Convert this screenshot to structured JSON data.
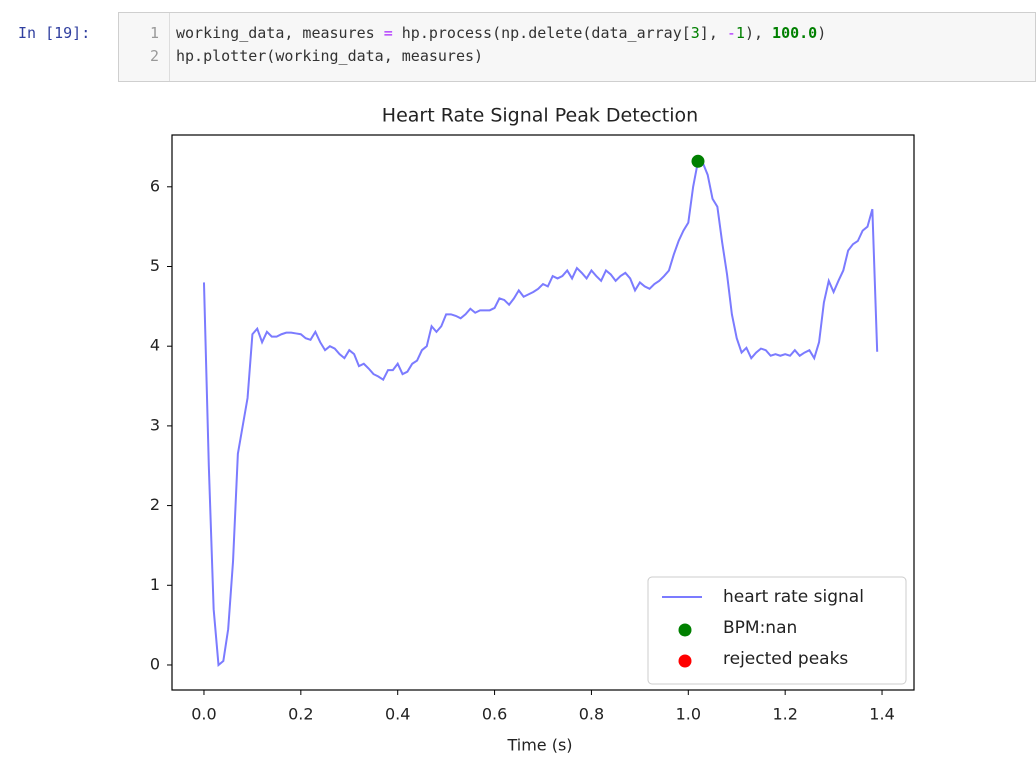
{
  "cell": {
    "prompt": "In [19]:",
    "lines": [
      {
        "number": 1,
        "tokens": [
          {
            "text": "working_data, measures ",
            "color": "#333333"
          },
          {
            "text": "=",
            "color": "#aa22ff"
          },
          {
            "text": " hp.process(np.delete(data_array[",
            "color": "#333333"
          },
          {
            "text": "3",
            "color": "#008000"
          },
          {
            "text": "], ",
            "color": "#333333"
          },
          {
            "text": "-",
            "color": "#aa22ff"
          },
          {
            "text": "1",
            "color": "#008000"
          },
          {
            "text": "), ",
            "color": "#333333"
          },
          {
            "text": "100.0",
            "color": "#008000"
          },
          {
            "text": ")",
            "color": "#333333"
          }
        ]
      },
      {
        "number": 2,
        "tokens": [
          {
            "text": "hp.plotter(working_data, measures)",
            "color": "#333333"
          }
        ]
      }
    ]
  },
  "chart_data": {
    "type": "line",
    "title": "Heart Rate Signal Peak Detection",
    "x_label": "Time (s)",
    "xlim": [
      -0.066,
      1.466
    ],
    "ylim": [
      -0.314,
      6.65
    ],
    "xticks": [
      {
        "value": 0,
        "label": "0.0"
      },
      0.2,
      0.4,
      0.6,
      0.8,
      {
        "value": 1,
        "label": "1.0"
      },
      1.2,
      1.4
    ],
    "yticks": [
      0,
      1,
      2,
      3,
      4,
      5,
      6
    ],
    "legend": "lower right",
    "series": [
      {
        "name": "heart rate signal",
        "type": "line",
        "color": "#7b7bff",
        "x": [
          0,
          0.01,
          0.02,
          0.03,
          0.04,
          0.05,
          0.06,
          0.07,
          0.08,
          0.09,
          0.1,
          0.11,
          0.12,
          0.13,
          0.14,
          0.15,
          0.16,
          0.17,
          0.18,
          0.19,
          0.2,
          0.21,
          0.22,
          0.23,
          0.24,
          0.25,
          0.26,
          0.27,
          0.28,
          0.29,
          0.3,
          0.31,
          0.32,
          0.33,
          0.34,
          0.35,
          0.36,
          0.37,
          0.38,
          0.39,
          0.4,
          0.41,
          0.42,
          0.43,
          0.44,
          0.45,
          0.46,
          0.47,
          0.48,
          0.49,
          0.5,
          0.51,
          0.52,
          0.53,
          0.54,
          0.55,
          0.56,
          0.57,
          0.58,
          0.59,
          0.6,
          0.61,
          0.62,
          0.63,
          0.64,
          0.65,
          0.66,
          0.67,
          0.68,
          0.69,
          0.7,
          0.71,
          0.72,
          0.73,
          0.74,
          0.75,
          0.76,
          0.77,
          0.78,
          0.79,
          0.8,
          0.81,
          0.82,
          0.83,
          0.84,
          0.85,
          0.86,
          0.87,
          0.88,
          0.89,
          0.9,
          0.91,
          0.92,
          0.93,
          0.94,
          0.95,
          0.96,
          0.97,
          0.98,
          0.99,
          1,
          1.01,
          1.02,
          1.03,
          1.04,
          1.05,
          1.06,
          1.07,
          1.08,
          1.09,
          1.1,
          1.11,
          1.12,
          1.13,
          1.14,
          1.15,
          1.16,
          1.17,
          1.18,
          1.19,
          1.2,
          1.21,
          1.22,
          1.23,
          1.24,
          1.25,
          1.26,
          1.27,
          1.28,
          1.29,
          1.3,
          1.31,
          1.32,
          1.33,
          1.34,
          1.35,
          1.36,
          1.37,
          1.38,
          1.39
        ],
        "values": [
          4.8,
          2.5,
          0.7,
          0.0,
          0.05,
          0.45,
          1.3,
          2.65,
          3.0,
          3.35,
          4.15,
          4.22,
          4.05,
          4.18,
          4.12,
          4.12,
          4.15,
          4.17,
          4.17,
          4.16,
          4.15,
          4.1,
          4.08,
          4.18,
          4.05,
          3.95,
          4.0,
          3.97,
          3.9,
          3.85,
          3.95,
          3.9,
          3.75,
          3.78,
          3.72,
          3.65,
          3.62,
          3.58,
          3.7,
          3.7,
          3.78,
          3.65,
          3.68,
          3.78,
          3.82,
          3.95,
          4.0,
          4.25,
          4.18,
          4.25,
          4.4,
          4.4,
          4.38,
          4.35,
          4.4,
          4.47,
          4.42,
          4.45,
          4.45,
          4.45,
          4.48,
          4.6,
          4.58,
          4.52,
          4.6,
          4.7,
          4.62,
          4.65,
          4.68,
          4.72,
          4.78,
          4.75,
          4.88,
          4.85,
          4.88,
          4.95,
          4.85,
          4.98,
          4.92,
          4.85,
          4.95,
          4.88,
          4.82,
          4.95,
          4.9,
          4.82,
          4.88,
          4.92,
          4.85,
          4.7,
          4.8,
          4.75,
          4.72,
          4.78,
          4.82,
          4.88,
          4.95,
          5.15,
          5.32,
          5.45,
          5.55,
          6.0,
          6.32,
          6.3,
          6.15,
          5.85,
          5.75,
          5.3,
          4.9,
          4.4,
          4.1,
          3.92,
          3.98,
          3.85,
          3.92,
          3.97,
          3.95,
          3.88,
          3.9,
          3.88,
          3.9,
          3.88,
          3.95,
          3.88,
          3.92,
          3.95,
          3.85,
          4.05,
          4.55,
          4.82,
          4.68,
          4.82,
          4.95,
          5.2,
          5.28,
          5.32,
          5.45,
          5.5,
          5.72,
          3.93
        ]
      },
      {
        "name": "BPM:nan",
        "type": "scatter",
        "color": "#008000",
        "x": [
          1.02
        ],
        "values": [
          6.32
        ]
      },
      {
        "name": "rejected peaks",
        "type": "scatter",
        "color": "#ff0000",
        "x": [],
        "values": []
      }
    ]
  }
}
